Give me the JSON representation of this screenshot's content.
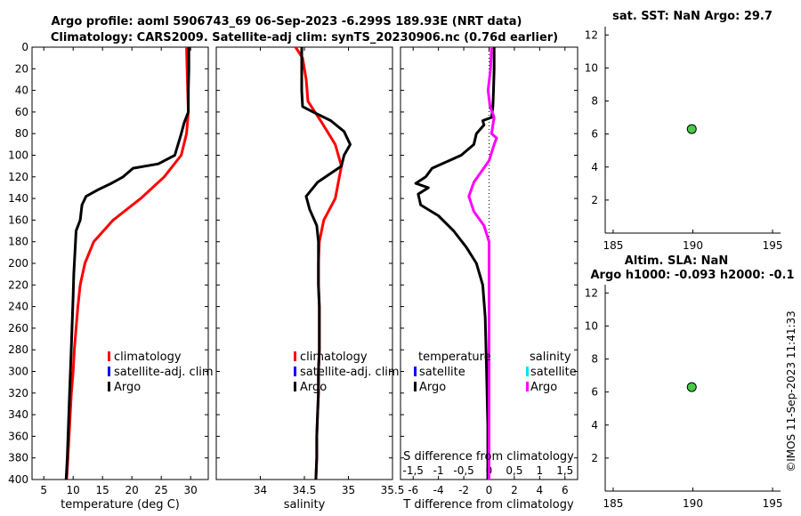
{
  "title": {
    "line1": "Argo profile: aoml 5906743_69 06-Sep-2023 -6.299S 189.93E (NRT data)",
    "line2": "Climatology: CARS2009. Satellite-adj clim: synTS_20230906.nc (0.76d earlier)"
  },
  "colors": {
    "climatology": "#ff0000",
    "satellite": "#0000ff",
    "argo": "#000000",
    "argo_salinity_diff": "#ff00ff",
    "satellite_salinity_diff": "#00e5ee",
    "marker_fill": "#44cc44"
  },
  "legend_main": [
    "climatology",
    "satellite-adj. clim",
    "Argo"
  ],
  "legend_diff": {
    "temperature_header": "temperature",
    "salinity_header": "salinity",
    "temperature_items": [
      "satellite",
      "Argo"
    ],
    "salinity_items": [
      "satellite",
      "Argo"
    ]
  },
  "right_panels": {
    "sst_title": "sat. SST: NaN Argo: 29.7",
    "sla_title_1": "Altim. SLA: NaN",
    "sla_title_2": "Argo h1000: -0.093 h2000: -0.1"
  },
  "timestamp": "©IMOS 11-Sep-2023 11:41:33",
  "chart_data": [
    {
      "type": "line",
      "id": "temperature",
      "xlabel": "temperature (deg C)",
      "ylabel": "",
      "xlim": [
        3,
        33
      ],
      "ylim": [
        400,
        0
      ],
      "xticks": [
        5,
        10,
        15,
        20,
        25,
        30
      ],
      "yticks": [
        0,
        20,
        40,
        60,
        80,
        100,
        120,
        140,
        160,
        180,
        200,
        220,
        240,
        260,
        280,
        300,
        320,
        340,
        360,
        380,
        400
      ],
      "series": [
        {
          "name": "climatology",
          "color": "#ff0000",
          "points": [
            [
              29.3,
              0
            ],
            [
              29.4,
              20
            ],
            [
              29.5,
              40
            ],
            [
              29.6,
              60
            ],
            [
              29.3,
              80
            ],
            [
              28.4,
              100
            ],
            [
              25.5,
              120
            ],
            [
              21.5,
              140
            ],
            [
              16.8,
              160
            ],
            [
              13.5,
              180
            ],
            [
              12.0,
              200
            ],
            [
              11.2,
              220
            ],
            [
              10.8,
              240
            ],
            [
              10.5,
              260
            ],
            [
              10.2,
              280
            ],
            [
              10.0,
              300
            ],
            [
              9.7,
              320
            ],
            [
              9.5,
              340
            ],
            [
              9.3,
              360
            ],
            [
              9.1,
              380
            ],
            [
              8.9,
              400
            ]
          ]
        },
        {
          "name": "Argo",
          "color": "#000000",
          "points": [
            [
              29.7,
              0
            ],
            [
              29.7,
              20
            ],
            [
              29.6,
              40
            ],
            [
              29.6,
              60
            ],
            [
              28.9,
              70
            ],
            [
              28.3,
              82
            ],
            [
              27.3,
              100
            ],
            [
              24.5,
              108
            ],
            [
              20.2,
              112
            ],
            [
              18.5,
              120
            ],
            [
              16.5,
              126
            ],
            [
              14.2,
              132
            ],
            [
              12.2,
              138
            ],
            [
              11.5,
              146
            ],
            [
              11.2,
              160
            ],
            [
              10.5,
              170
            ],
            [
              10.3,
              190
            ],
            [
              10.1,
              210
            ],
            [
              10.0,
              230
            ],
            [
              9.8,
              260
            ],
            [
              9.6,
              290
            ],
            [
              9.4,
              320
            ],
            [
              9.2,
              350
            ],
            [
              9.0,
              380
            ],
            [
              8.8,
              400
            ]
          ]
        }
      ]
    },
    {
      "type": "line",
      "id": "salinity",
      "xlabel": "salinity",
      "xlim": [
        33.5,
        35.5
      ],
      "ylim": [
        400,
        0
      ],
      "xticks": [
        34,
        34.5,
        35,
        35.5
      ],
      "series": [
        {
          "name": "climatology",
          "color": "#ff0000",
          "points": [
            [
              34.4,
              0
            ],
            [
              34.48,
              10
            ],
            [
              34.52,
              30
            ],
            [
              34.54,
              50
            ],
            [
              34.7,
              70
            ],
            [
              34.85,
              90
            ],
            [
              34.92,
              110
            ],
            [
              34.85,
              140
            ],
            [
              34.72,
              160
            ],
            [
              34.67,
              180
            ],
            [
              34.66,
              200
            ],
            [
              34.66,
              220
            ],
            [
              34.67,
              240
            ],
            [
              34.67,
              260
            ],
            [
              34.67,
              280
            ],
            [
              34.66,
              300
            ],
            [
              34.66,
              320
            ],
            [
              34.65,
              340
            ],
            [
              34.64,
              360
            ],
            [
              34.64,
              380
            ],
            [
              34.63,
              400
            ]
          ]
        },
        {
          "name": "Argo",
          "color": "#000000",
          "points": [
            [
              34.47,
              0
            ],
            [
              34.47,
              20
            ],
            [
              34.47,
              40
            ],
            [
              34.48,
              55
            ],
            [
              34.6,
              60
            ],
            [
              34.8,
              68
            ],
            [
              34.95,
              78
            ],
            [
              35.02,
              90
            ],
            [
              34.95,
              100
            ],
            [
              34.92,
              110
            ],
            [
              34.65,
              125
            ],
            [
              34.52,
              138
            ],
            [
              34.56,
              150
            ],
            [
              34.64,
              165
            ],
            [
              34.66,
              180
            ],
            [
              34.66,
              200
            ],
            [
              34.66,
              220
            ],
            [
              34.67,
              240
            ],
            [
              34.67,
              260
            ],
            [
              34.67,
              280
            ],
            [
              34.66,
              300
            ],
            [
              34.66,
              320
            ],
            [
              34.65,
              340
            ],
            [
              34.64,
              360
            ],
            [
              34.64,
              380
            ],
            [
              34.63,
              400
            ]
          ]
        }
      ]
    },
    {
      "type": "line",
      "id": "difference",
      "xlabel": "T difference from climatology",
      "xlabel_top": "S difference from climatology",
      "xlim": [
        -7,
        7
      ],
      "ylim": [
        400,
        0
      ],
      "xticks": [
        -6,
        -4,
        -2,
        0,
        2,
        4,
        6
      ],
      "xlim_s": [
        -1.75,
        1.75
      ],
      "xticks_s": [
        -1.5,
        -1,
        -0.5,
        0,
        0.5,
        1,
        1.5
      ],
      "series": [
        {
          "name": "Argo T",
          "color": "#000000",
          "points": [
            [
              0.4,
              0
            ],
            [
              0.4,
              20
            ],
            [
              0.35,
              40
            ],
            [
              0.3,
              55
            ],
            [
              0.2,
              65
            ],
            [
              -0.5,
              68
            ],
            [
              -0.4,
              72
            ],
            [
              -1.0,
              80
            ],
            [
              -1.2,
              90
            ],
            [
              -2.2,
              100
            ],
            [
              -4.5,
              112
            ],
            [
              -5.0,
              120
            ],
            [
              -5.8,
              126
            ],
            [
              -4.8,
              130
            ],
            [
              -5.6,
              136
            ],
            [
              -5.4,
              146
            ],
            [
              -4.0,
              156
            ],
            [
              -2.8,
              170
            ],
            [
              -1.8,
              185
            ],
            [
              -1.0,
              200
            ],
            [
              -0.5,
              220
            ],
            [
              -0.3,
              250
            ],
            [
              -0.2,
              300
            ],
            [
              -0.1,
              350
            ],
            [
              -0.1,
              400
            ]
          ]
        },
        {
          "name": "Argo S",
          "color": "#ff00ff",
          "unit": "salinity",
          "points": [
            [
              0.05,
              0
            ],
            [
              0.03,
              20
            ],
            [
              -0.02,
              40
            ],
            [
              0.02,
              55
            ],
            [
              0.1,
              65
            ],
            [
              0.05,
              80
            ],
            [
              0.15,
              84
            ],
            [
              0.1,
              90
            ],
            [
              0.0,
              105
            ],
            [
              -0.3,
              125
            ],
            [
              -0.4,
              138
            ],
            [
              -0.3,
              152
            ],
            [
              -0.1,
              165
            ],
            [
              0.0,
              180
            ],
            [
              0.0,
              200
            ],
            [
              0.0,
              250
            ],
            [
              0.0,
              300
            ],
            [
              0.0,
              400
            ]
          ]
        }
      ]
    },
    {
      "type": "scatter",
      "id": "sst",
      "title": "sat. SST: NaN Argo: 29.7",
      "xlim": [
        184.5,
        195.5
      ],
      "ylim": [
        0,
        12.5
      ],
      "xticks": [
        185,
        190,
        195
      ],
      "yticks": [
        2,
        4,
        6,
        8,
        10,
        12
      ],
      "points": [
        [
          189.93,
          6.3
        ]
      ]
    },
    {
      "type": "scatter",
      "id": "sla",
      "title": "Altim. SLA: NaN / Argo h1000: -0.093 h2000: -0.1",
      "xlim": [
        184.5,
        195.5
      ],
      "ylim": [
        0,
        12.5
      ],
      "xticks": [
        185,
        190,
        195
      ],
      "yticks": [
        2,
        4,
        6,
        8,
        10,
        12
      ],
      "points": [
        [
          189.93,
          6.3
        ]
      ]
    }
  ]
}
